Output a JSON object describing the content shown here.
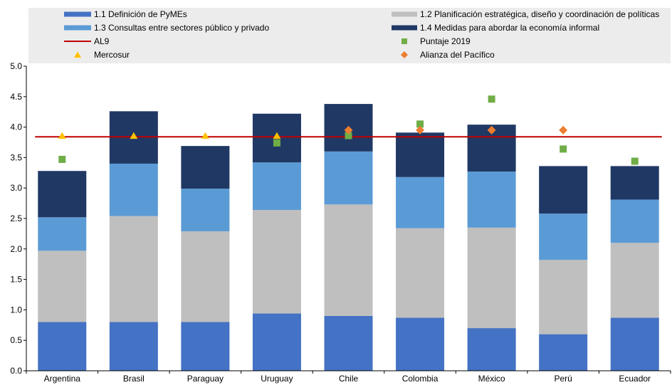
{
  "chart_data": {
    "type": "bar",
    "stacked": true,
    "categories": [
      "Argentina",
      "Brasil",
      "Paraguay",
      "Uruguay",
      "Chile",
      "Colombia",
      "México",
      "Perú",
      "Ecuador"
    ],
    "series": [
      {
        "name": "1.1 Definición de PyMEs",
        "color": "#4472c4",
        "values": [
          0.8,
          0.8,
          0.8,
          0.94,
          0.9,
          0.87,
          0.7,
          0.6,
          0.87
        ]
      },
      {
        "name": "1.2 Planificación estratégica, diseño y coordinación de políticas",
        "color": "#bfbfbf",
        "values": [
          1.17,
          1.74,
          1.49,
          1.7,
          1.83,
          1.47,
          1.65,
          1.22,
          1.23
        ]
      },
      {
        "name": "1.3 Consultas entre sectores público y privado",
        "color": "#5b9bd5",
        "values": [
          0.55,
          0.86,
          0.7,
          0.78,
          0.87,
          0.84,
          0.92,
          0.76,
          0.71
        ]
      },
      {
        "name": "1.4 Medidas para abordar la economía informal",
        "color": "#203864",
        "values": [
          0.76,
          0.86,
          0.7,
          0.8,
          0.78,
          0.73,
          0.77,
          0.78,
          0.55
        ]
      }
    ],
    "overlays": {
      "al9": {
        "name": "AL9",
        "color": "#c00000",
        "value": 3.84
      },
      "puntaje": {
        "name": "Puntaje 2019",
        "color": "#70ad47",
        "values": [
          3.47,
          null,
          null,
          3.74,
          3.86,
          4.05,
          4.46,
          3.64,
          3.44
        ]
      },
      "mercosur": {
        "name": "Mercosur",
        "color": "#ffc000",
        "values": [
          3.86,
          3.86,
          3.86,
          3.86,
          null,
          null,
          null,
          null,
          null
        ]
      },
      "alianza": {
        "name": "Alianza del Pacífico",
        "color": "#ed7d31",
        "values": [
          null,
          null,
          null,
          null,
          3.95,
          3.95,
          3.95,
          3.95,
          null
        ]
      }
    },
    "ylim": [
      0,
      5.0
    ],
    "yticks": [
      "0.0",
      "0.5",
      "1.0",
      "1.5",
      "2.0",
      "2.5",
      "3.0",
      "3.5",
      "4.0",
      "4.5",
      "5.0"
    ],
    "legend_position": "top",
    "grid": false
  }
}
